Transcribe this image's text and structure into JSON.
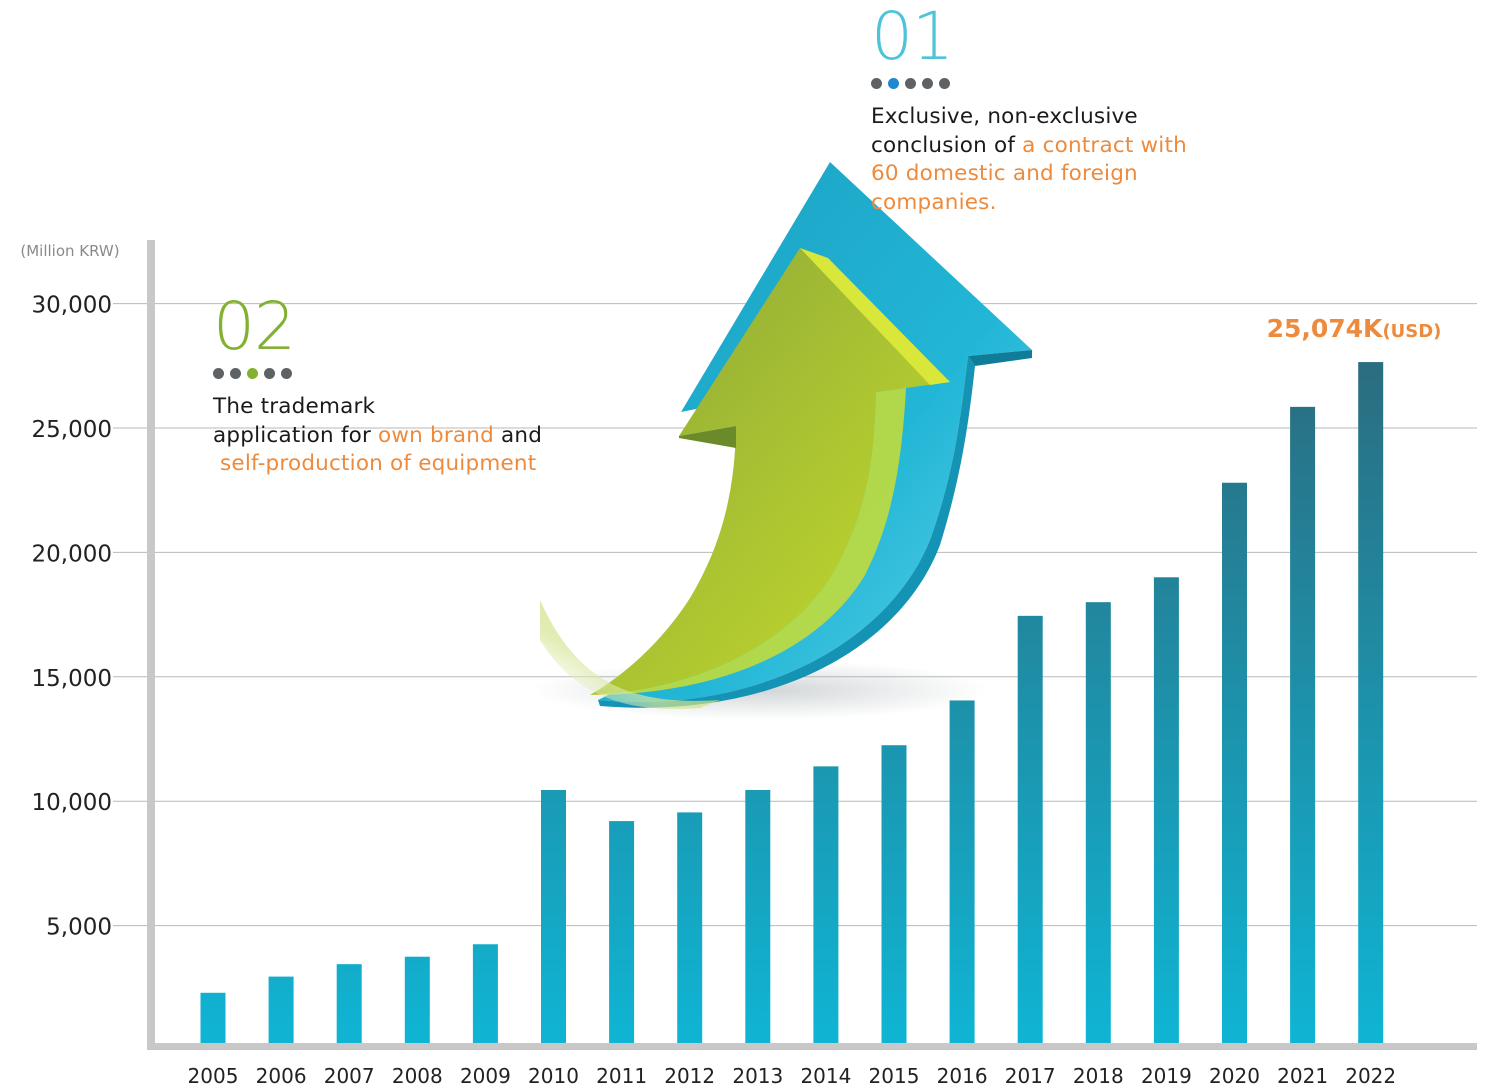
{
  "colors": {
    "bar_top": "#2e6678",
    "bar_bottom": "#0fb5d4",
    "highlight_orange": "#ee8a3c",
    "num01_blue": "#4fc3d7",
    "num02_green": "#82b132",
    "dot_gray": "#5f6265",
    "dot_active_blue": "#1e88d2",
    "dot_active_green": "#82b132",
    "arrow_teal": "#1aa6c8",
    "arrow_green": "#b4cd2b"
  },
  "callouts": {
    "c01": {
      "number": "01",
      "active_dot": 2,
      "line1": "Exclusive, non-exclusive",
      "line2_plain": "conclusion of ",
      "line2_hl": "a contract with",
      "line3_hl": "60 domestic and foreign",
      "line4_hl": "companies."
    },
    "c02": {
      "number": "02",
      "active_dot": 3,
      "line1": "The trademark",
      "line2_plain": "application for ",
      "line2_hl": "own brand",
      "line2_tail": " and",
      "line3_hl": "self-production of equipment"
    }
  },
  "chart_data": {
    "type": "bar",
    "title": "",
    "ylabel": "(Million KRW)",
    "xlabel": "",
    "ylim": [
      0,
      30000
    ],
    "yticks": [
      5000,
      10000,
      15000,
      20000,
      25000,
      30000
    ],
    "ytick_labels": [
      "5,000",
      "10,000",
      "15,000",
      "20,000",
      "25,000",
      "30,000"
    ],
    "grid": true,
    "categories": [
      "2005",
      "2006",
      "2007",
      "2008",
      "2009",
      "2010",
      "2011",
      "2012",
      "2013",
      "2014",
      "2015",
      "2016",
      "2017",
      "2018",
      "2019",
      "2020",
      "2021",
      "2022"
    ],
    "values": [
      2300,
      2950,
      3450,
      3750,
      4250,
      10450,
      9200,
      9550,
      10450,
      11400,
      12250,
      14050,
      17450,
      18000,
      19000,
      22800,
      25850,
      27650
    ],
    "annotation": {
      "value_text": "25,074K",
      "unit_text": "(USD)",
      "category": "2022"
    }
  }
}
